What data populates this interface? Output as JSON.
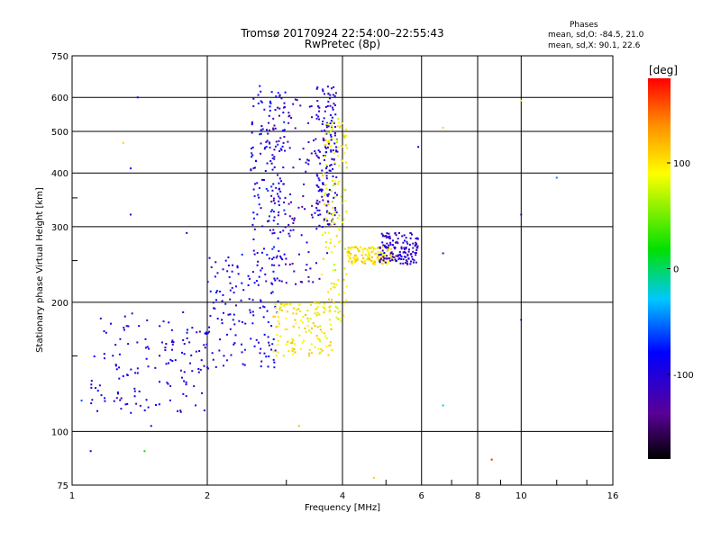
{
  "chart_data": {
    "type": "scatter",
    "title": "Tromsø 20170924 22:54:00–22:55:43",
    "subtitle": "RwPretec (8p)",
    "xlabel": "Frequency [MHz]",
    "ylabel": "Stationary phase Virtual Height [km]",
    "x_scale": "log",
    "y_scale": "log",
    "xlim": [
      1,
      16
    ],
    "ylim": [
      75,
      750
    ],
    "x_ticks": [
      1,
      2,
      4,
      6,
      8,
      10,
      16
    ],
    "y_ticks": [
      75,
      100,
      200,
      300,
      400,
      500,
      600,
      750
    ],
    "grid": true,
    "phases_box": {
      "title": "Phases",
      "line_o": "mean, sd,O: -84.5, 21.0",
      "line_x": "mean, sd,X:  90.1, 22.6"
    },
    "colorbar": {
      "label": "[deg]",
      "range": [
        -180,
        180
      ],
      "ticks": [
        100,
        0,
        -100
      ],
      "colormap": "rainbow (black-violet-blue-cyan-green-yellow-red)"
    },
    "clusters": [
      {
        "name": "F-region O-trace lower",
        "fmin": 1.1,
        "fmax": 2.0,
        "hmin": 110,
        "hmax": 190,
        "phase": -100
      },
      {
        "name": "F-region O-trace mid",
        "fmin": 2.0,
        "fmax": 2.9,
        "hmin": 140,
        "hmax": 260,
        "phase": -95
      },
      {
        "name": "F-region O-trace column",
        "fmin": 2.5,
        "fmax": 3.0,
        "hmin": 250,
        "hmax": 640,
        "phase": -90
      },
      {
        "name": "F-region O-trace upper",
        "fmin": 2.7,
        "fmax": 3.7,
        "hmin": 220,
        "hmax": 600,
        "phase": -115
      },
      {
        "name": "F-region O-trace column 2",
        "fmin": 3.5,
        "fmax": 3.9,
        "hmin": 300,
        "hmax": 640,
        "phase": -100
      },
      {
        "name": "X-trace lower",
        "fmin": 2.8,
        "fmax": 3.8,
        "hmin": 150,
        "hmax": 200,
        "phase": 95
      },
      {
        "name": "X-trace column",
        "fmin": 3.6,
        "fmax": 4.1,
        "hmin": 180,
        "hmax": 540,
        "phase": 90
      },
      {
        "name": "X-trace tail",
        "fmin": 4.1,
        "fmax": 5.2,
        "hmin": 245,
        "hmax": 270,
        "phase": 100
      },
      {
        "name": "O-trace tail",
        "fmin": 4.8,
        "fmax": 5.9,
        "hmin": 245,
        "hmax": 290,
        "phase": -110
      }
    ],
    "sparse_points": [
      {
        "x": 1.05,
        "y": 118,
        "phase": -60
      },
      {
        "x": 1.1,
        "y": 90,
        "phase": -90
      },
      {
        "x": 1.3,
        "y": 470,
        "phase": 110
      },
      {
        "x": 1.35,
        "y": 410,
        "phase": -90
      },
      {
        "x": 1.35,
        "y": 320,
        "phase": -100
      },
      {
        "x": 1.4,
        "y": 600,
        "phase": -80
      },
      {
        "x": 1.45,
        "y": 90,
        "phase": 20
      },
      {
        "x": 1.5,
        "y": 103,
        "phase": -100
      },
      {
        "x": 1.8,
        "y": 290,
        "phase": -100
      },
      {
        "x": 3.2,
        "y": 103,
        "phase": 120
      },
      {
        "x": 4.7,
        "y": 78,
        "phase": 110
      },
      {
        "x": 5.9,
        "y": 460,
        "phase": -100
      },
      {
        "x": 6.7,
        "y": 510,
        "phase": 110
      },
      {
        "x": 6.7,
        "y": 260,
        "phase": -140
      },
      {
        "x": 6.7,
        "y": 115,
        "phase": -30
      },
      {
        "x": 8.6,
        "y": 86,
        "phase": 170
      },
      {
        "x": 10.0,
        "y": 590,
        "phase": 80
      },
      {
        "x": 10.0,
        "y": 320,
        "phase": -110
      },
      {
        "x": 10.0,
        "y": 182,
        "phase": -110
      },
      {
        "x": 12.0,
        "y": 390,
        "phase": -50
      }
    ]
  }
}
